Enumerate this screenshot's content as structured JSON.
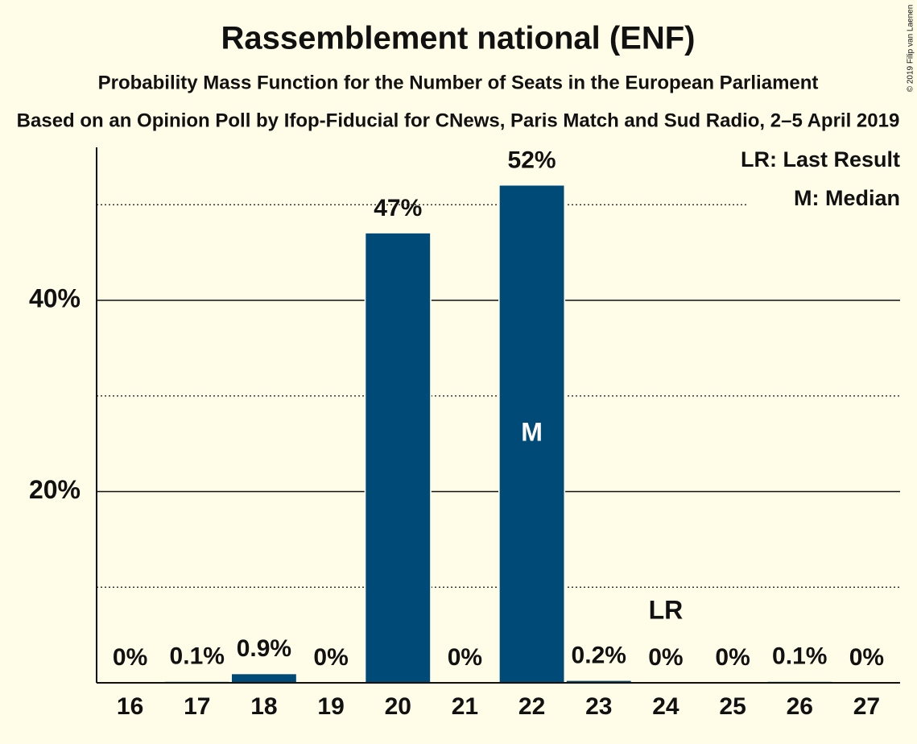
{
  "chart_data": {
    "type": "bar",
    "title": "Rassemblement national (ENF)",
    "subtitle": "Probability Mass Function for the Number of Seats in the European Parliament",
    "source": "Based on an Opinion Poll by Ifop-Fiducial for CNews, Paris Match and Sud Radio, 2–5 April 2019",
    "copyright": "© 2019 Filip van Laenen",
    "categories": [
      "16",
      "17",
      "18",
      "19",
      "20",
      "21",
      "22",
      "23",
      "24",
      "25",
      "26",
      "27"
    ],
    "values": [
      0,
      0.1,
      0.9,
      0,
      47,
      0,
      52,
      0.2,
      0,
      0,
      0.1,
      0
    ],
    "value_labels": [
      "0%",
      "0.1%",
      "0.9%",
      "0%",
      "47%",
      "0%",
      "52%",
      "0.2%",
      "0%",
      "0%",
      "0.1%",
      "0%"
    ],
    "color": "#004a77",
    "ylim": [
      0,
      56
    ],
    "yticks": [
      {
        "value": 20,
        "label": "20%"
      },
      {
        "value": 40,
        "label": "40%"
      }
    ],
    "minor_yticks": [
      10,
      30,
      50
    ],
    "grid": true,
    "markers": [
      {
        "text": "LR",
        "category": "24",
        "position": "above"
      },
      {
        "text": "M",
        "category": "22",
        "position": "inside"
      }
    ],
    "legend": [
      "LR: Last Result",
      "M: Median"
    ],
    "legend_corner": "top-right"
  }
}
